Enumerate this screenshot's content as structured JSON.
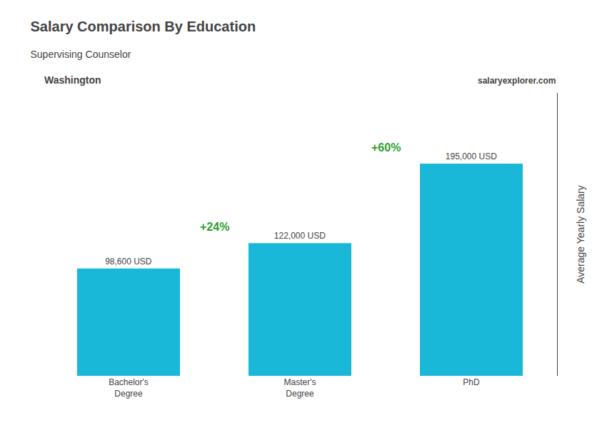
{
  "chart_data": {
    "type": "bar",
    "title": "Salary Comparison By Education",
    "subtitle": "Supervising Counselor",
    "location": "Washington",
    "brand": "salaryexplorer.com",
    "ylabel": "Average Yearly Salary",
    "categories": [
      "Bachelor's\nDegree",
      "Master's\nDegree",
      "PhD"
    ],
    "values": [
      98600,
      122000,
      195000
    ],
    "value_labels": [
      "98,600 USD",
      "122,000 USD",
      "195,000 USD"
    ],
    "data_labels": true,
    "annotations": [
      "+24%",
      "+60%"
    ],
    "color": "#1ab8d8",
    "ylim": [
      0,
      260000
    ],
    "tick_labels": false,
    "grid": false
  }
}
